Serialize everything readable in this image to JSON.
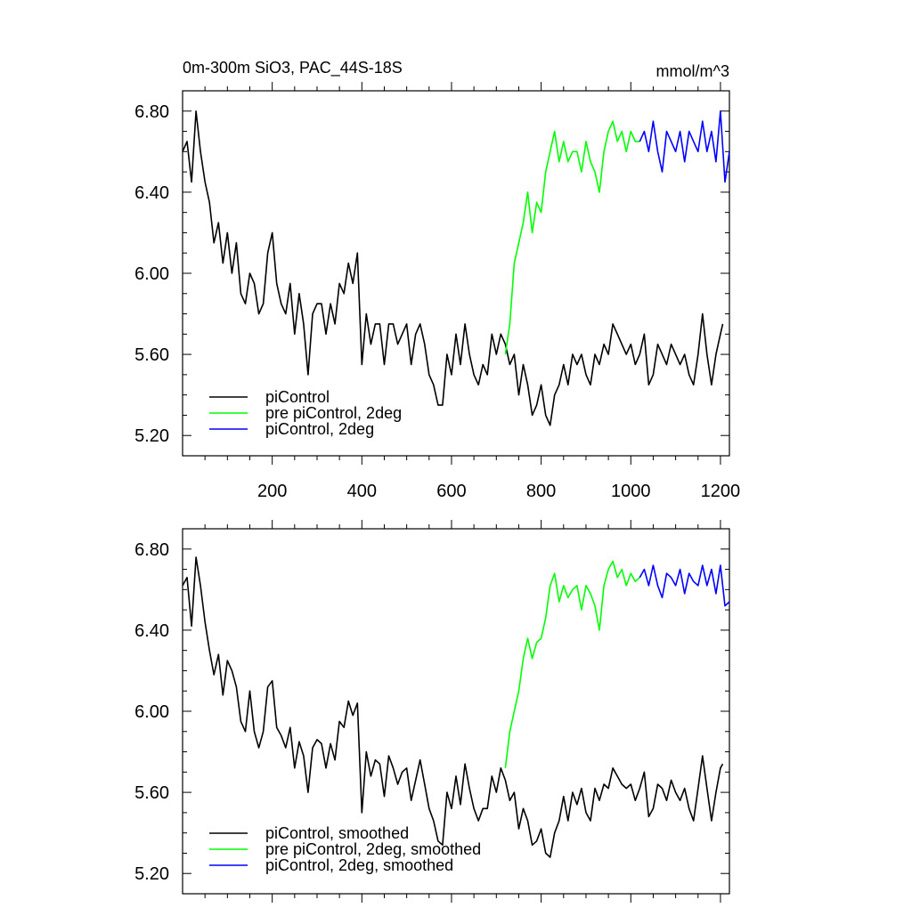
{
  "header": {
    "title": "0m-300m SiO3, PAC_44S-18S",
    "units": "mmol/m^3"
  },
  "chart_data": [
    {
      "type": "line",
      "panel": "top",
      "xlim": [
        0,
        1220
      ],
      "ylim": [
        5.1,
        6.9
      ],
      "x_ticks": [
        200,
        400,
        600,
        800,
        1000,
        1200
      ],
      "x_tick_labels": [
        "200",
        "400",
        "600",
        "800",
        "1000",
        "1200"
      ],
      "y_ticks": [
        5.2,
        5.6,
        6.0,
        6.4,
        6.8
      ],
      "y_tick_labels": [
        "5.20",
        "5.60",
        "6.00",
        "6.40",
        "6.80"
      ],
      "legend_placement": "bottom-left",
      "series": [
        {
          "name": "piControl",
          "color": "#000000",
          "x": [
            0,
            10,
            20,
            30,
            40,
            50,
            60,
            70,
            80,
            90,
            100,
            110,
            120,
            130,
            140,
            150,
            160,
            170,
            180,
            190,
            200,
            210,
            220,
            230,
            240,
            250,
            260,
            270,
            280,
            290,
            300,
            310,
            320,
            330,
            340,
            350,
            360,
            370,
            380,
            390,
            400,
            410,
            420,
            430,
            440,
            450,
            460,
            470,
            480,
            490,
            500,
            510,
            520,
            530,
            540,
            550,
            560,
            570,
            580,
            590,
            600,
            610,
            620,
            630,
            640,
            650,
            660,
            670,
            680,
            690,
            700,
            710,
            720,
            730,
            740,
            750,
            760,
            770,
            780,
            790,
            800,
            810,
            820,
            830,
            840,
            850,
            860,
            870,
            880,
            890,
            900,
            910,
            920,
            930,
            940,
            950,
            960,
            970,
            980,
            990,
            1000,
            1010,
            1020,
            1030,
            1040,
            1050,
            1060,
            1070,
            1080,
            1090,
            1100,
            1110,
            1120,
            1130,
            1140,
            1150,
            1160,
            1170,
            1180,
            1190,
            1200,
            1205
          ],
          "values": [
            6.6,
            6.65,
            6.45,
            6.8,
            6.6,
            6.45,
            6.35,
            6.15,
            6.25,
            6.05,
            6.2,
            6.0,
            6.15,
            5.9,
            5.85,
            6.0,
            5.95,
            5.8,
            5.85,
            6.1,
            6.2,
            5.95,
            5.85,
            5.8,
            5.95,
            5.7,
            5.9,
            5.75,
            5.5,
            5.8,
            5.85,
            5.85,
            5.7,
            5.85,
            5.75,
            5.95,
            5.9,
            6.05,
            5.95,
            6.1,
            5.55,
            5.8,
            5.65,
            5.75,
            5.75,
            5.55,
            5.75,
            5.75,
            5.65,
            5.7,
            5.75,
            5.55,
            5.7,
            5.75,
            5.65,
            5.5,
            5.45,
            5.35,
            5.35,
            5.6,
            5.5,
            5.7,
            5.55,
            5.75,
            5.6,
            5.5,
            5.45,
            5.55,
            5.5,
            5.7,
            5.6,
            5.7,
            5.65,
            5.55,
            5.6,
            5.4,
            5.55,
            5.45,
            5.3,
            5.35,
            5.45,
            5.3,
            5.25,
            5.4,
            5.45,
            5.55,
            5.45,
            5.6,
            5.55,
            5.6,
            5.5,
            5.45,
            5.6,
            5.55,
            5.65,
            5.6,
            5.75,
            5.7,
            5.65,
            5.6,
            5.65,
            5.55,
            5.6,
            5.7,
            5.45,
            5.5,
            5.65,
            5.6,
            5.55,
            5.65,
            5.6,
            5.55,
            5.6,
            5.5,
            5.45,
            5.6,
            5.8,
            5.6,
            5.45,
            5.6,
            5.7,
            5.75
          ]
        },
        {
          "name": "pre piControl, 2deg",
          "color": "#00ff00",
          "x": [
            720,
            730,
            740,
            750,
            760,
            770,
            780,
            790,
            800,
            810,
            820,
            830,
            840,
            850,
            860,
            870,
            880,
            890,
            900,
            910,
            920,
            930,
            940,
            950,
            960,
            970,
            980,
            990,
            1000,
            1010,
            1020
          ],
          "values": [
            5.6,
            5.75,
            6.05,
            6.15,
            6.25,
            6.4,
            6.2,
            6.35,
            6.3,
            6.5,
            6.6,
            6.7,
            6.55,
            6.65,
            6.55,
            6.6,
            6.6,
            6.5,
            6.65,
            6.55,
            6.5,
            6.4,
            6.6,
            6.7,
            6.75,
            6.65,
            6.7,
            6.6,
            6.7,
            6.65,
            6.65
          ]
        },
        {
          "name": "piControl, 2deg",
          "color": "#0000ff",
          "x": [
            1020,
            1030,
            1040,
            1050,
            1060,
            1070,
            1080,
            1090,
            1100,
            1110,
            1120,
            1130,
            1140,
            1150,
            1160,
            1170,
            1180,
            1190,
            1200,
            1210,
            1220
          ],
          "values": [
            6.65,
            6.7,
            6.6,
            6.75,
            6.6,
            6.5,
            6.7,
            6.65,
            6.6,
            6.7,
            6.55,
            6.7,
            6.65,
            6.6,
            6.75,
            6.6,
            6.7,
            6.55,
            6.8,
            6.45,
            6.6
          ]
        }
      ]
    },
    {
      "type": "line",
      "panel": "bottom",
      "xlim": [
        0,
        1220
      ],
      "ylim": [
        5.1,
        6.9
      ],
      "x_ticks": [
        200,
        400,
        600,
        800,
        1000,
        1200
      ],
      "x_tick_labels": [],
      "y_ticks": [
        5.2,
        5.6,
        6.0,
        6.4,
        6.8
      ],
      "y_tick_labels": [
        "5.20",
        "5.60",
        "6.00",
        "6.40",
        "6.80"
      ],
      "legend_placement": "bottom-left",
      "series": [
        {
          "name": "piControl, smoothed",
          "color": "#000000",
          "x": [
            0,
            10,
            20,
            30,
            40,
            50,
            60,
            70,
            80,
            90,
            100,
            110,
            120,
            130,
            140,
            150,
            160,
            170,
            180,
            190,
            200,
            210,
            220,
            230,
            240,
            250,
            260,
            270,
            280,
            290,
            300,
            310,
            320,
            330,
            340,
            350,
            360,
            370,
            380,
            390,
            400,
            410,
            420,
            430,
            440,
            450,
            460,
            470,
            480,
            490,
            500,
            510,
            520,
            530,
            540,
            550,
            560,
            570,
            580,
            590,
            600,
            610,
            620,
            630,
            640,
            650,
            660,
            670,
            680,
            690,
            700,
            710,
            720,
            730,
            740,
            750,
            760,
            770,
            780,
            790,
            800,
            810,
            820,
            830,
            840,
            850,
            860,
            870,
            880,
            890,
            900,
            910,
            920,
            930,
            940,
            950,
            960,
            970,
            980,
            990,
            1000,
            1010,
            1020,
            1030,
            1040,
            1050,
            1060,
            1070,
            1080,
            1090,
            1100,
            1110,
            1120,
            1130,
            1140,
            1150,
            1160,
            1170,
            1180,
            1190,
            1200,
            1205
          ],
          "values": [
            6.62,
            6.66,
            6.42,
            6.76,
            6.62,
            6.44,
            6.3,
            6.18,
            6.28,
            6.08,
            6.25,
            6.2,
            6.12,
            5.95,
            5.9,
            6.1,
            5.9,
            5.82,
            5.9,
            6.12,
            6.15,
            5.92,
            5.88,
            5.82,
            5.92,
            5.72,
            5.85,
            5.78,
            5.6,
            5.82,
            5.86,
            5.84,
            5.72,
            5.84,
            5.76,
            5.95,
            5.92,
            6.05,
            5.98,
            6.04,
            5.5,
            5.8,
            5.68,
            5.76,
            5.74,
            5.58,
            5.78,
            5.72,
            5.64,
            5.7,
            5.72,
            5.56,
            5.66,
            5.76,
            5.64,
            5.52,
            5.46,
            5.36,
            5.34,
            5.6,
            5.52,
            5.68,
            5.54,
            5.74,
            5.62,
            5.52,
            5.46,
            5.52,
            5.52,
            5.68,
            5.6,
            5.72,
            5.66,
            5.56,
            5.6,
            5.42,
            5.52,
            5.46,
            5.34,
            5.36,
            5.42,
            5.3,
            5.28,
            5.4,
            5.46,
            5.58,
            5.46,
            5.6,
            5.54,
            5.62,
            5.5,
            5.46,
            5.62,
            5.56,
            5.64,
            5.62,
            5.72,
            5.68,
            5.64,
            5.62,
            5.64,
            5.56,
            5.62,
            5.7,
            5.48,
            5.52,
            5.64,
            5.62,
            5.56,
            5.66,
            5.6,
            5.56,
            5.62,
            5.52,
            5.46,
            5.62,
            5.78,
            5.62,
            5.46,
            5.6,
            5.72,
            5.74
          ]
        },
        {
          "name": "pre piControl, 2deg, smoothed",
          "color": "#00ff00",
          "x": [
            720,
            730,
            740,
            750,
            760,
            770,
            780,
            790,
            800,
            810,
            820,
            830,
            840,
            850,
            860,
            870,
            880,
            890,
            900,
            910,
            920,
            930,
            940,
            950,
            960,
            970,
            980,
            990,
            1000,
            1010,
            1020
          ],
          "values": [
            5.72,
            5.9,
            6.0,
            6.1,
            6.26,
            6.36,
            6.26,
            6.34,
            6.36,
            6.46,
            6.62,
            6.68,
            6.54,
            6.62,
            6.56,
            6.6,
            6.62,
            6.5,
            6.62,
            6.58,
            6.52,
            6.4,
            6.62,
            6.7,
            6.74,
            6.66,
            6.7,
            6.62,
            6.68,
            6.64,
            6.66
          ]
        },
        {
          "name": "piControl, 2deg, smoothed",
          "color": "#0000ff",
          "x": [
            1020,
            1030,
            1040,
            1050,
            1060,
            1070,
            1080,
            1090,
            1100,
            1110,
            1120,
            1130,
            1140,
            1150,
            1160,
            1170,
            1180,
            1190,
            1200,
            1210,
            1220
          ],
          "values": [
            6.66,
            6.7,
            6.62,
            6.72,
            6.62,
            6.56,
            6.68,
            6.66,
            6.62,
            6.7,
            6.58,
            6.68,
            6.64,
            6.62,
            6.72,
            6.62,
            6.7,
            6.58,
            6.72,
            6.52,
            6.54
          ]
        }
      ]
    }
  ]
}
